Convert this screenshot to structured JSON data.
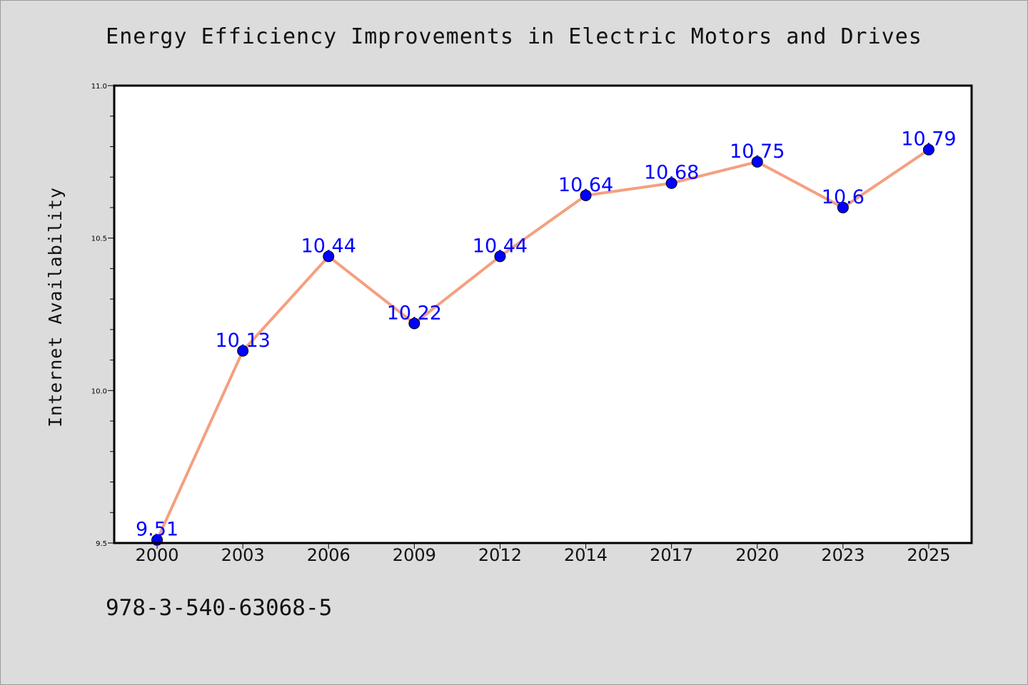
{
  "chart_data": {
    "type": "line",
    "title": "Energy Efficiency Improvements in Electric Motors and Drives",
    "xlabel": "",
    "ylabel": "Internet Availability",
    "categories": [
      "2000",
      "2003",
      "2006",
      "2009",
      "2012",
      "2014",
      "2017",
      "2020",
      "2023",
      "2025"
    ],
    "series": [
      {
        "values": [
          9.51,
          10.13,
          10.44,
          10.22,
          10.44,
          10.64,
          10.68,
          10.75,
          10.6,
          10.79
        ],
        "point_labels": [
          "9.51",
          "10.13",
          "10.44",
          "10.22",
          "10.44",
          "10.64",
          "10.68",
          "10.75",
          "10.6",
          "10.79"
        ],
        "line_color": "#f4a080",
        "marker_color": "#0000ff",
        "label_color": "#0000ff"
      }
    ],
    "ylim": [
      9.5,
      11.0
    ],
    "y_major_ticks": [
      "9.5",
      "10.0",
      "10.5",
      "11.0"
    ],
    "grid": false,
    "legend": "none"
  },
  "footer": {
    "code": "978-3-540-63068-5"
  },
  "colors": {
    "background": "#dcdcdc",
    "plot_background": "#ffffff",
    "axis": "#000000"
  }
}
